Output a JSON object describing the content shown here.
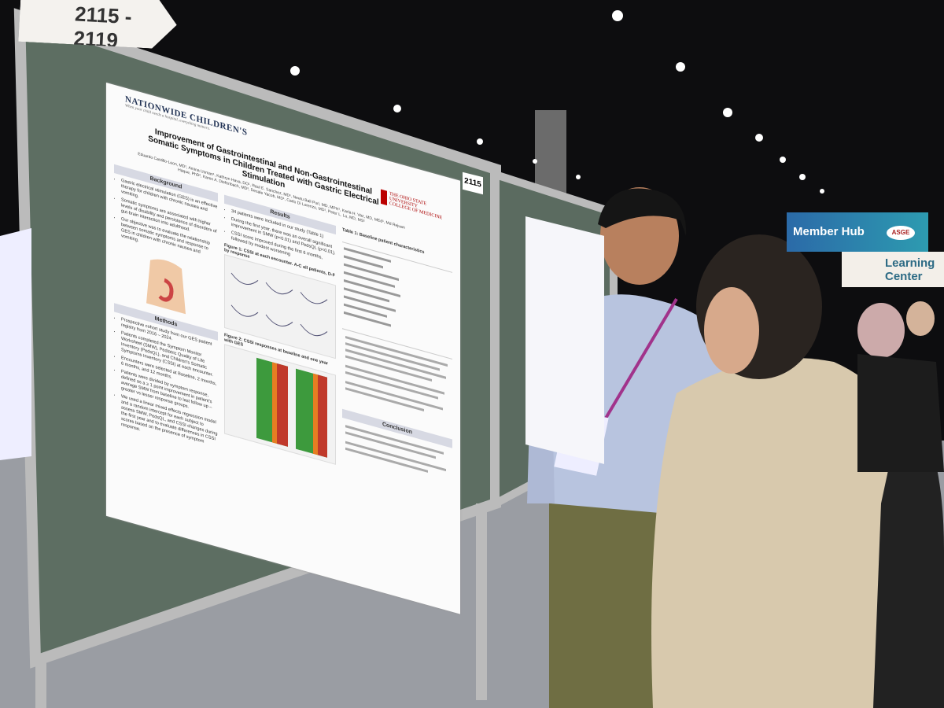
{
  "sign": "2115 - 2119",
  "board_number": "2115",
  "poster": {
    "logo": "NATIONWIDE CHILDREN'S",
    "tagline": "When your child needs a hospital, everything matters.",
    "university": "THE OHIO STATE UNIVERSITY",
    "university_sub": "COLLEGE OF MEDICINE",
    "title": "Improvement of Gastrointestinal and Non-Gastrointestinal Somatic Symptoms in Children Treated with Gastric Electrical Stimulation",
    "authors": "Eduardo Castillo-Leon, MD¹, Amina Usman¹, Kathryn Hava, DO¹, Raul E. Sanchez, MD¹, Neetu Bali Puri, MD, MPH¹, Karla H. Vaz, MD, MEd¹, Md Rejuan Haque, PhD², Karen A. Diefenbach, MD³, Desale Yacob, MD¹, Carlo Di Lorenzo, MD¹, Peter L. Lu, MD, MS¹",
    "sections": [
      {
        "heading": "Background",
        "bullets": [
          "Gastric electrical stimulation (GES) is an effective therapy for children with chronic nausea and vomiting.",
          "Somatic symptoms are associated with higher levels of disability and persistence of disorders of gut-brain interaction into adulthood.",
          "Our objective was to evaluate the relationship between somatic symptoms and response to GES in children with chronic nausea and vomiting."
        ]
      },
      {
        "heading": "Methods",
        "bullets": [
          "Prospective cohort study from our GES patient registry from 2016 – 2024.",
          "Patients completed the Symptom Monitor Worksheet (SMW), Pediatric Quality of Life Inventory (PedsQL), and Children's Somatic Symptoms Inventory (CSSI) at each encounter.",
          "Encounters were selected at Baseline, 2 months, 6 months, and 12 months.",
          "Patients were divided by symptom response, defined as a ≥ 1 point improvement in patient's average SMW from baseline to last follow up – greater vs lesser response groups.",
          "We used a linear mixed effects regression model and a random intercept for each subject to assess SMW, PedsQL, and CSSI changes during the first year and to evaluate differences in CSSI scores based on the presence of symptom response."
        ]
      },
      {
        "heading": "Results",
        "bullets": [
          "34 patients were included in our study (Table 1)",
          "During the first year, there was an overall significant improvement in SMW (p<0.01) and PedsQL (p<0.01).",
          "CSSI score improved during the first 6 months, followed by modest worsening"
        ]
      },
      {
        "heading": "Conclusion",
        "bullets": []
      }
    ],
    "figure1": "Figure 1: CSSI at each encounter. A-C all patients, D-F by response",
    "figure2": "Figure 2: CSSI responses at baseline and one year with GES",
    "table1": "Table 1: Baseline patient characteristics"
  },
  "banner": {
    "hub": "Member Hub",
    "logo": "ASGE",
    "center": "Learning Center"
  }
}
